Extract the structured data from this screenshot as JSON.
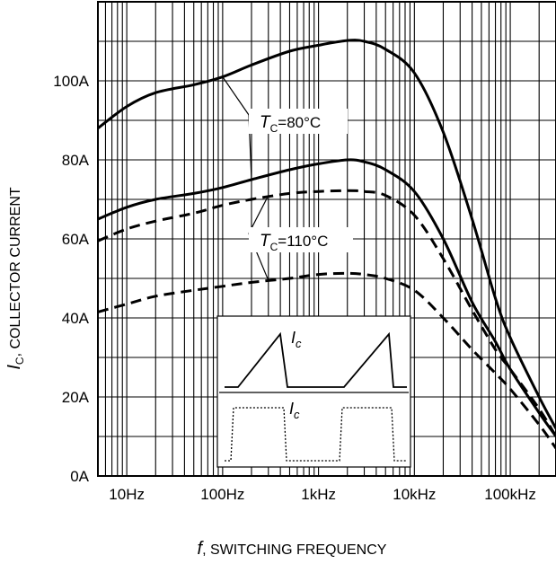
{
  "chart_data": {
    "type": "line",
    "x_scale": "log",
    "grid": true,
    "xlabel_italic": "f",
    "xlabel_rest": ", SWITCHING FREQUENCY",
    "ylabel_italic": "I",
    "ylabel_sub": "C",
    "ylabel_rest": ", COLLECTOR CURRENT",
    "xlim": [
      5,
      300000
    ],
    "ylim": [
      0,
      120
    ],
    "x_ticks": [
      {
        "value": 10,
        "label": "10Hz"
      },
      {
        "value": 100,
        "label": "100Hz"
      },
      {
        "value": 1000,
        "label": "1kHz"
      },
      {
        "value": 10000,
        "label": "10kHz"
      },
      {
        "value": 100000,
        "label": "100kHz"
      }
    ],
    "y_ticks": [
      {
        "value": 0,
        "label": "0A"
      },
      {
        "value": 20,
        "label": "20A"
      },
      {
        "value": 40,
        "label": "40A"
      },
      {
        "value": 60,
        "label": "60A"
      },
      {
        "value": 80,
        "label": "80A"
      },
      {
        "value": 100,
        "label": "100A"
      }
    ],
    "series": [
      {
        "style": "solid",
        "group": "80",
        "points": [
          [
            5,
            88
          ],
          [
            10,
            93.5
          ],
          [
            20,
            97
          ],
          [
            50,
            99
          ],
          [
            100,
            101
          ],
          [
            200,
            104
          ],
          [
            500,
            107.5
          ],
          [
            1000,
            109
          ],
          [
            2000,
            110.2
          ],
          [
            3000,
            110
          ],
          [
            5000,
            108
          ],
          [
            10000,
            102
          ],
          [
            20000,
            87
          ],
          [
            40000,
            65
          ],
          [
            70000,
            45
          ],
          [
            100000,
            35
          ],
          [
            200000,
            20
          ],
          [
            300000,
            12
          ]
        ]
      },
      {
        "style": "solid",
        "group": "80",
        "points": [
          [
            5,
            65
          ],
          [
            10,
            68
          ],
          [
            20,
            70
          ],
          [
            50,
            71.5
          ],
          [
            100,
            73
          ],
          [
            200,
            75
          ],
          [
            500,
            77.5
          ],
          [
            1000,
            79
          ],
          [
            2000,
            80
          ],
          [
            3000,
            79.5
          ],
          [
            5000,
            77.5
          ],
          [
            10000,
            72
          ],
          [
            20000,
            60
          ],
          [
            40000,
            44
          ],
          [
            70000,
            34
          ],
          [
            100000,
            27
          ],
          [
            200000,
            16
          ],
          [
            300000,
            10
          ]
        ]
      },
      {
        "style": "dashed",
        "group": "110",
        "points": [
          [
            5,
            59.5
          ],
          [
            10,
            62.5
          ],
          [
            20,
            64.5
          ],
          [
            50,
            66.5
          ],
          [
            100,
            68.5
          ],
          [
            200,
            70
          ],
          [
            500,
            71.5
          ],
          [
            1000,
            72
          ],
          [
            2000,
            72.2
          ],
          [
            3000,
            72
          ],
          [
            5000,
            71
          ],
          [
            10000,
            66
          ],
          [
            20000,
            55
          ],
          [
            40000,
            42
          ],
          [
            70000,
            32
          ],
          [
            100000,
            27
          ],
          [
            200000,
            17
          ],
          [
            300000,
            10
          ]
        ]
      },
      {
        "style": "dashed",
        "group": "110",
        "points": [
          [
            5,
            41.5
          ],
          [
            10,
            43.5
          ],
          [
            20,
            45.5
          ],
          [
            50,
            47
          ],
          [
            100,
            48
          ],
          [
            200,
            49
          ],
          [
            500,
            50
          ],
          [
            1000,
            51
          ],
          [
            2000,
            51.3
          ],
          [
            3000,
            51
          ],
          [
            5000,
            50
          ],
          [
            10000,
            47
          ],
          [
            20000,
            40
          ],
          [
            40000,
            32
          ],
          [
            70000,
            26
          ],
          [
            100000,
            22
          ],
          [
            200000,
            13
          ],
          [
            300000,
            7
          ]
        ]
      }
    ],
    "annotations": [
      {
        "label_italic": "T",
        "label_sub": "C",
        "label_rest": "=80°C",
        "group": "80",
        "leader_targets": [
          [
            100,
            101
          ],
          [
            200,
            75
          ]
        ]
      },
      {
        "label_italic": "T",
        "label_sub": "C",
        "label_rest": "=110°C",
        "group": "110",
        "leader_targets": [
          [
            300,
            71
          ],
          [
            300,
            49.5
          ]
        ]
      }
    ],
    "inset": {
      "top_label_italic": "I",
      "top_label_sub": "c",
      "bottom_label_italic": "I",
      "bottom_label_sub": "c"
    }
  },
  "colors": {
    "background": "#ffffff",
    "lines": "#000000",
    "grid": "#000000"
  }
}
